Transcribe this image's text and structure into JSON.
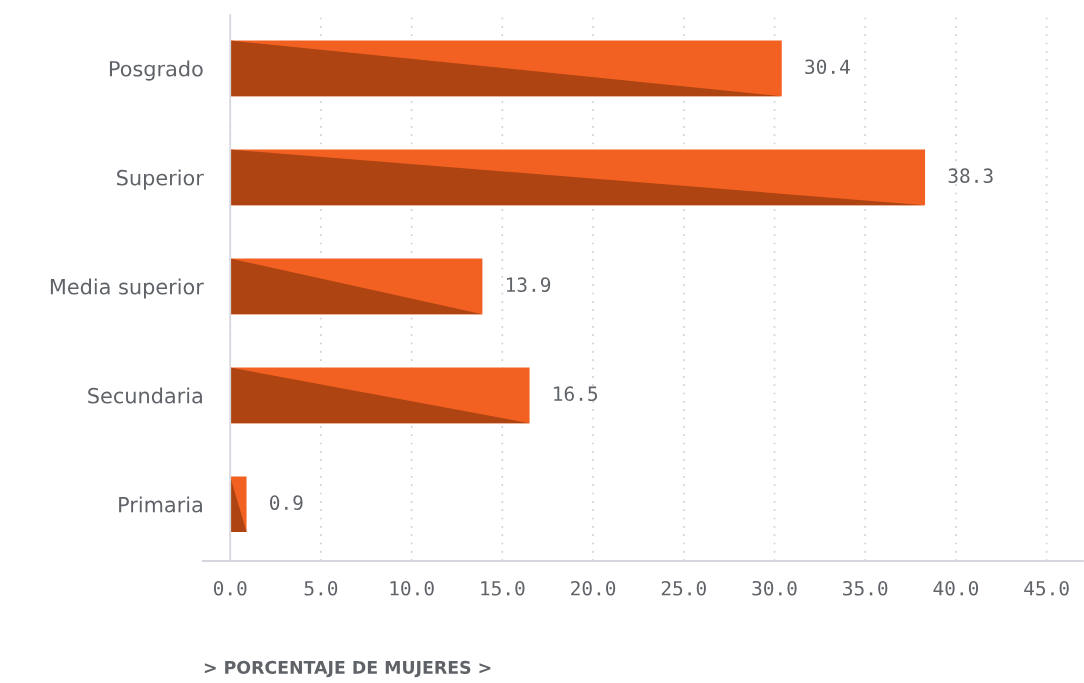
{
  "chart_data": {
    "type": "bar",
    "orientation": "horizontal",
    "xlabel": "> PORCENTAJE DE MUJERES >",
    "categories": [
      "Posgrado",
      "Superior",
      "Media superior",
      "Secundaria",
      "Primaria"
    ],
    "values": [
      30.4,
      38.3,
      13.9,
      16.5,
      0.9
    ],
    "color": "#f26122",
    "xlim": [
      -1.5,
      47
    ],
    "xticks": [
      {
        "value": 0,
        "label": "0.0"
      },
      {
        "value": 5,
        "label": "5.0"
      },
      {
        "value": 10,
        "label": "10.0"
      },
      {
        "value": 15,
        "label": "15.0"
      },
      {
        "value": 20,
        "label": "20.0"
      },
      {
        "value": 25,
        "label": "25.0"
      },
      {
        "value": 30,
        "label": "30.0"
      },
      {
        "value": 35,
        "label": "35.0"
      },
      {
        "value": 40,
        "label": "40.0"
      },
      {
        "value": 45,
        "label": "45.0"
      }
    ],
    "grid": "x",
    "data_labels": true
  }
}
